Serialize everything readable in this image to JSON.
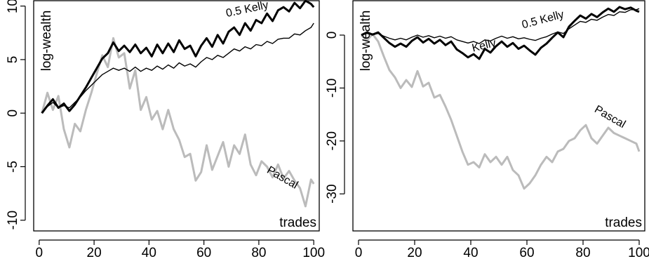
{
  "chart_data": [
    {
      "type": "line",
      "xlabel": "trades",
      "ylabel": "log-wealth",
      "xlim": [
        -2,
        102
      ],
      "ylim": [
        -11,
        10.5
      ],
      "xticks": [
        "0",
        "20",
        "40",
        "60",
        "80",
        "100"
      ],
      "yticks": [
        "-10",
        "-5",
        "0",
        "5",
        "10"
      ],
      "grid": false,
      "legend": "none (series labelled inline)",
      "series": [
        {
          "name": "Kelly",
          "color": "#000000",
          "line_width": "thick",
          "x": [
            1,
            3,
            5,
            7,
            9,
            11,
            13,
            15,
            17,
            19,
            21,
            23,
            25,
            27,
            29,
            31,
            33,
            35,
            37,
            39,
            41,
            43,
            45,
            47,
            49,
            51,
            53,
            55,
            57,
            59,
            61,
            63,
            65,
            67,
            69,
            71,
            73,
            75,
            77,
            79,
            81,
            83,
            85,
            87,
            89,
            91,
            93,
            95,
            97,
            99,
            100
          ],
          "y": [
            0.0,
            0.7,
            1.3,
            0.5,
            0.9,
            0.2,
            0.8,
            1.6,
            2.4,
            3.3,
            4.2,
            5.1,
            5.6,
            6.6,
            5.8,
            6.3,
            5.7,
            6.4,
            5.6,
            6.1,
            5.3,
            6.4,
            5.6,
            6.5,
            5.7,
            6.8,
            6.0,
            6.3,
            5.3,
            6.3,
            7.0,
            6.2,
            7.3,
            6.5,
            7.6,
            8.0,
            7.3,
            8.4,
            7.7,
            8.7,
            8.4,
            9.3,
            8.6,
            9.6,
            9.9,
            9.5,
            10.3,
            9.8,
            10.5,
            10.2,
            9.9
          ]
        },
        {
          "name": "0.5 Kelly",
          "color": "#000000",
          "line_width": "thin",
          "x": [
            1,
            3,
            5,
            7,
            9,
            11,
            13,
            15,
            17,
            19,
            21,
            23,
            25,
            27,
            29,
            31,
            33,
            35,
            37,
            39,
            41,
            43,
            45,
            47,
            49,
            51,
            53,
            55,
            57,
            59,
            61,
            63,
            65,
            67,
            69,
            71,
            73,
            75,
            77,
            79,
            81,
            83,
            85,
            87,
            89,
            91,
            93,
            95,
            97,
            99,
            100
          ],
          "y": [
            0.0,
            0.6,
            1.0,
            0.5,
            0.7,
            0.5,
            1.0,
            1.5,
            2.1,
            2.6,
            3.1,
            3.6,
            3.9,
            4.2,
            4.0,
            4.2,
            3.9,
            4.3,
            3.9,
            4.2,
            4.0,
            4.4,
            4.1,
            4.5,
            4.2,
            4.7,
            4.4,
            4.6,
            4.3,
            4.8,
            5.2,
            5.0,
            5.4,
            5.2,
            5.6,
            6.0,
            5.8,
            6.2,
            6.0,
            6.4,
            6.3,
            6.7,
            6.5,
            6.9,
            7.0,
            7.0,
            7.4,
            7.3,
            7.7,
            8.0,
            8.4
          ]
        },
        {
          "name": "Pascal",
          "color": "#bbbbbb",
          "line_width": "thick",
          "x": [
            1,
            3,
            5,
            7,
            9,
            11,
            13,
            15,
            17,
            19,
            21,
            23,
            25,
            27,
            29,
            31,
            33,
            35,
            37,
            39,
            41,
            43,
            45,
            47,
            49,
            51,
            53,
            55,
            57,
            59,
            61,
            63,
            65,
            67,
            69,
            71,
            73,
            75,
            77,
            79,
            81,
            83,
            85,
            87,
            89,
            91,
            93,
            95,
            97,
            99,
            100
          ],
          "y": [
            0.0,
            1.9,
            0.3,
            1.6,
            -1.5,
            -3.2,
            -1.0,
            -1.7,
            0.3,
            1.9,
            3.7,
            5.4,
            4.3,
            7.0,
            5.2,
            5.6,
            2.3,
            4.0,
            0.3,
            1.5,
            -0.6,
            0.2,
            -1.5,
            0.3,
            -1.5,
            -2.5,
            -4.1,
            -3.8,
            -6.3,
            -5.5,
            -3.0,
            -5.3,
            -4.0,
            -2.7,
            -5.0,
            -3.0,
            -3.8,
            -2.0,
            -4.8,
            -5.8,
            -4.5,
            -5.0,
            -6.0,
            -4.8,
            -6.1,
            -5.4,
            -6.3,
            -7.0,
            -8.7,
            -6.2,
            -6.6
          ]
        }
      ],
      "labels": [
        {
          "series": "Kelly",
          "text": "Kelly",
          "x": 83,
          "y": 11.7,
          "angle": -14
        },
        {
          "series": "0.5 Kelly",
          "text": "0.5 Kelly",
          "x": 76,
          "y": 9.4,
          "angle": -12
        },
        {
          "series": "Pascal",
          "text": "Pascal",
          "x": 88,
          "y": -6.3,
          "angle": 30
        }
      ]
    },
    {
      "type": "line",
      "xlabel": "trades",
      "ylabel": "log-wealth",
      "xlim": [
        -2,
        102
      ],
      "ylim": [
        -37,
        6.5
      ],
      "xticks": [
        "0",
        "20",
        "40",
        "60",
        "80",
        "100"
      ],
      "yticks": [
        "-30",
        "-20",
        "-10",
        "0"
      ],
      "grid": false,
      "legend": "none (series labelled inline)",
      "series": [
        {
          "name": "Kelly",
          "color": "#000000",
          "line_width": "thick",
          "x": [
            1,
            3,
            5,
            7,
            9,
            11,
            13,
            15,
            17,
            19,
            21,
            23,
            25,
            27,
            29,
            31,
            33,
            35,
            37,
            39,
            41,
            43,
            45,
            47,
            49,
            51,
            53,
            55,
            57,
            59,
            61,
            63,
            65,
            67,
            69,
            71,
            73,
            75,
            77,
            79,
            81,
            83,
            85,
            87,
            89,
            91,
            93,
            95,
            97,
            99,
            100
          ],
          "y": [
            0.0,
            0.5,
            0.1,
            0.5,
            -0.5,
            -1.5,
            -2.2,
            -1.6,
            -2.2,
            -1.1,
            -0.4,
            -1.4,
            -0.7,
            -1.6,
            -0.9,
            -1.9,
            -1.2,
            -2.7,
            -3.4,
            -4.2,
            -3.6,
            -4.5,
            -2.6,
            -3.3,
            -2.1,
            -1.2,
            -2.2,
            -1.5,
            -2.6,
            -2.0,
            -2.9,
            -3.7,
            -2.4,
            -1.6,
            -0.5,
            0.5,
            -0.4,
            1.6,
            2.7,
            3.7,
            3.1,
            4.0,
            3.4,
            4.3,
            5.0,
            4.4,
            5.3,
            4.9,
            5.2,
            4.6,
            4.4
          ]
        },
        {
          "name": "0.5 Kelly",
          "color": "#000000",
          "line_width": "thin",
          "x": [
            1,
            3,
            5,
            7,
            9,
            11,
            13,
            15,
            17,
            19,
            21,
            23,
            25,
            27,
            29,
            31,
            33,
            35,
            37,
            39,
            41,
            43,
            45,
            47,
            49,
            51,
            53,
            55,
            57,
            59,
            61,
            63,
            65,
            67,
            69,
            71,
            73,
            75,
            77,
            79,
            81,
            83,
            85,
            87,
            89,
            91,
            93,
            95,
            97,
            99,
            100
          ],
          "y": [
            0.0,
            0.3,
            0.1,
            0.3,
            -0.2,
            -0.6,
            -0.9,
            -0.6,
            -0.9,
            -0.4,
            0.0,
            -0.4,
            -0.1,
            -0.5,
            -0.2,
            -0.6,
            -0.3,
            -0.9,
            -1.2,
            -1.5,
            -1.2,
            -1.6,
            -0.9,
            -1.1,
            -0.6,
            -0.2,
            -0.6,
            -0.3,
            -0.7,
            -0.5,
            -0.8,
            -1.0,
            -0.6,
            -0.3,
            0.2,
            0.6,
            0.3,
            1.2,
            1.9,
            2.6,
            2.4,
            3.0,
            2.8,
            3.4,
            3.9,
            3.7,
            4.4,
            4.3,
            4.8,
            4.8,
            5.0
          ]
        },
        {
          "name": "Pascal",
          "color": "#bbbbbb",
          "line_width": "thick",
          "x": [
            1,
            3,
            5,
            7,
            9,
            11,
            13,
            15,
            17,
            19,
            21,
            23,
            25,
            27,
            29,
            31,
            33,
            35,
            37,
            39,
            41,
            43,
            45,
            47,
            49,
            51,
            53,
            55,
            57,
            59,
            61,
            63,
            65,
            67,
            69,
            71,
            73,
            75,
            77,
            79,
            81,
            83,
            85,
            87,
            89,
            91,
            93,
            95,
            97,
            99,
            100
          ],
          "y": [
            0.0,
            -1.0,
            0.2,
            -1.2,
            -4.0,
            -6.6,
            -8.0,
            -10.0,
            -8.5,
            -9.8,
            -6.8,
            -9.7,
            -9.0,
            -11.8,
            -11.3,
            -13.5,
            -16.0,
            -19.0,
            -22.0,
            -24.5,
            -24.0,
            -25.0,
            -22.5,
            -24.0,
            -23.0,
            -24.5,
            -23.0,
            -25.5,
            -26.5,
            -29.0,
            -28.0,
            -26.5,
            -24.5,
            -23.0,
            -24.0,
            -22.0,
            -21.5,
            -20.0,
            -19.5,
            -18.0,
            -17.0,
            -19.5,
            -20.5,
            -19.0,
            -17.5,
            -18.5,
            -19.0,
            -19.5,
            -20.0,
            -20.5,
            -22.0
          ]
        }
      ],
      "labels": [
        {
          "series": "Kelly",
          "text": "Kelly",
          "x": 45,
          "y": -2.6,
          "angle": -14
        },
        {
          "series": "0.5 Kelly",
          "text": "0.5 Kelly",
          "x": 66,
          "y": 2.3,
          "angle": -15
        },
        {
          "series": "Pascal",
          "text": "Pascal",
          "x": 89,
          "y": -16.0,
          "angle": 30
        }
      ]
    }
  ]
}
